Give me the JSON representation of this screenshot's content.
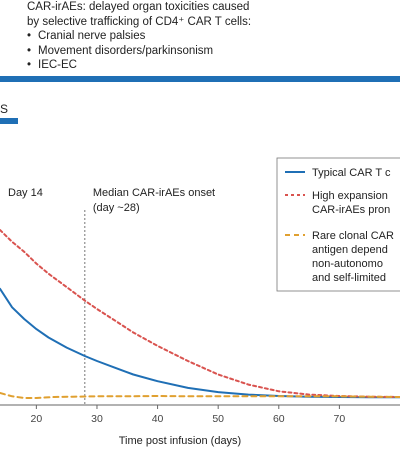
{
  "header": {
    "line1": "CAR-irAEs: delayed organ toxicities caused",
    "line2": "by selective trafficking of CD4⁺ CAR T cells:",
    "bullets": [
      "Cranial nerve palsies",
      "Movement disorders/parkinsonism",
      "IEC-EC"
    ]
  },
  "section_label": "S",
  "chart_data": {
    "type": "line",
    "title": "",
    "xlabel": "Time post infusion (days)",
    "ylabel": "",
    "xlim": [
      14,
      80
    ],
    "x_ticks": [
      20,
      30,
      40,
      50,
      60,
      70
    ],
    "annotations": [
      {
        "text": "Day 14",
        "x": 14
      },
      {
        "text_lines": [
          "Median CAR-irAEs onset",
          "(day ~28)"
        ],
        "x": 28
      }
    ],
    "legend": {
      "placement": "top-right",
      "entries": [
        {
          "lines": [
            "Typical CAR T c"
          ],
          "color": "#1f6fb5",
          "dash": "solid"
        },
        {
          "lines": [
            "High expansion",
            "CAR-irAEs pron"
          ],
          "color": "#d9534f",
          "dash": "dotted"
        },
        {
          "lines": [
            "Rare clonal CAR",
            "antigen depend",
            "non-autonomo",
            "and self-limited"
          ],
          "color": "#e0a030",
          "dash": "dashed"
        }
      ]
    },
    "series": [
      {
        "color": "#1f6fb5",
        "dash": "solid",
        "x": [
          14,
          16,
          18,
          20,
          22,
          25,
          28,
          30,
          33,
          36,
          40,
          45,
          50,
          55,
          60,
          65,
          70,
          75,
          80
        ],
        "y": [
          0.65,
          0.54,
          0.47,
          0.41,
          0.36,
          0.3,
          0.25,
          0.22,
          0.18,
          0.14,
          0.1,
          0.06,
          0.035,
          0.02,
          0.012,
          0.008,
          0.006,
          0.005,
          0.005
        ]
      },
      {
        "color": "#d9534f",
        "dash": "dotted",
        "x": [
          14,
          16,
          18,
          20,
          22,
          25,
          28,
          30,
          33,
          36,
          40,
          45,
          50,
          55,
          60,
          65,
          70,
          75,
          80
        ],
        "y": [
          1.0,
          0.93,
          0.87,
          0.8,
          0.74,
          0.66,
          0.58,
          0.53,
          0.46,
          0.39,
          0.31,
          0.22,
          0.14,
          0.08,
          0.04,
          0.02,
          0.012,
          0.008,
          0.006
        ]
      },
      {
        "color": "#e0a030",
        "dash": "dashed",
        "x": [
          14,
          16,
          18,
          20,
          23,
          26,
          30,
          35,
          40,
          45,
          50,
          55,
          60,
          65,
          70,
          75,
          80
        ],
        "y": [
          0.03,
          0.01,
          0.0,
          0.0,
          0.006,
          0.008,
          0.01,
          0.01,
          0.012,
          0.01,
          0.01,
          0.01,
          0.01,
          0.01,
          0.01,
          0.008,
          0.006
        ]
      }
    ]
  }
}
